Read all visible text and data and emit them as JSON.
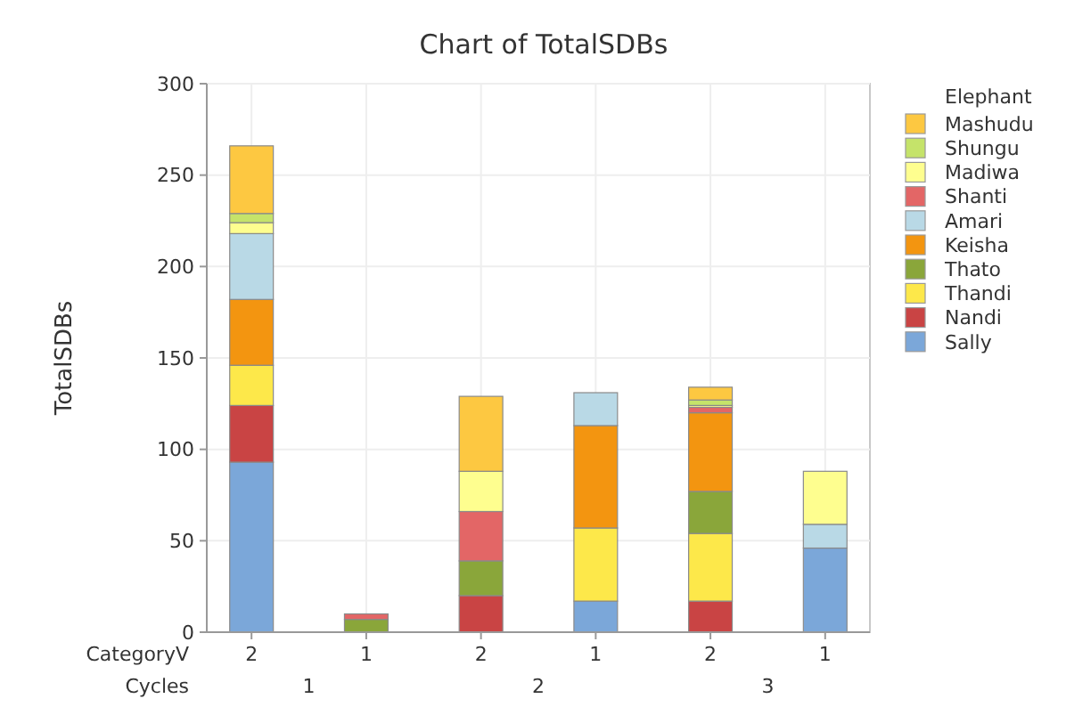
{
  "chart_data": {
    "type": "bar",
    "stacked": true,
    "title": "Chart of TotalSDBs",
    "ylabel": "TotalSDBs",
    "xlabel": "Cycles",
    "annotations": [
      "CategoryV",
      "1",
      "2",
      "3"
    ],
    "legend_title": "Elephant",
    "legend": "right",
    "grid": true,
    "categories": [
      "2",
      "1",
      "2",
      "1",
      "2",
      "1"
    ],
    "ylim": [
      0,
      300
    ],
    "yticks": [
      0,
      50,
      100,
      150,
      200,
      250,
      300
    ],
    "series": [
      {
        "name": "Sally",
        "color": "#7ba7d9",
        "values": [
          93,
          null,
          null,
          17,
          null,
          46
        ]
      },
      {
        "name": "Nandi",
        "color": "#c94444",
        "values": [
          31,
          null,
          20,
          null,
          17,
          null
        ]
      },
      {
        "name": "Thandi",
        "color": "#fde84a",
        "values": [
          22,
          null,
          null,
          40,
          37,
          null
        ]
      },
      {
        "name": "Thato",
        "color": "#8aa63a",
        "values": [
          null,
          7,
          19,
          null,
          23,
          null
        ]
      },
      {
        "name": "Keisha",
        "color": "#f39510",
        "values": [
          36,
          null,
          null,
          56,
          43,
          null
        ]
      },
      {
        "name": "Amari",
        "color": "#b9d9e6",
        "values": [
          36,
          null,
          null,
          18,
          null,
          13
        ]
      },
      {
        "name": "Shanti",
        "color": "#e36666",
        "values": [
          null,
          3,
          27,
          null,
          3,
          null
        ]
      },
      {
        "name": "Madiwa",
        "color": "#fefe8f",
        "values": [
          6,
          null,
          22,
          null,
          1,
          29
        ]
      },
      {
        "name": "Shungu",
        "color": "#c5e36a",
        "values": [
          5,
          null,
          null,
          null,
          3,
          null
        ]
      },
      {
        "name": "Mashudu",
        "color": "#fdc841",
        "values": [
          37,
          null,
          41,
          null,
          7,
          null
        ]
      }
    ]
  }
}
